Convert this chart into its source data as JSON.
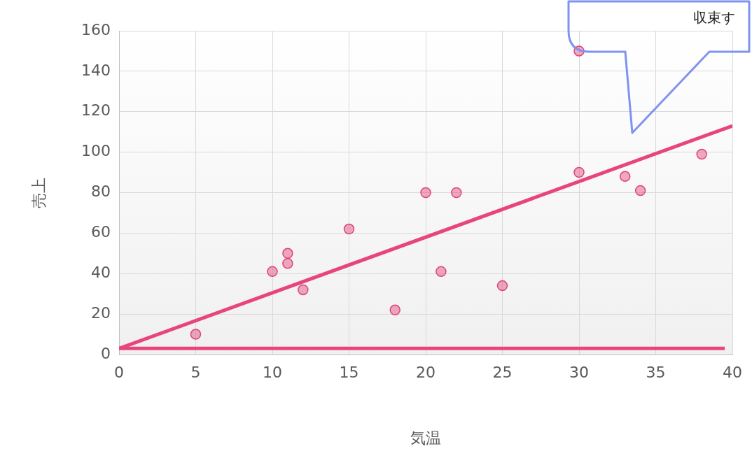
{
  "chart_data": {
    "type": "scatter",
    "xlabel": "気温",
    "ylabel": "売上",
    "xlim": [
      0,
      40
    ],
    "xticks": [
      0,
      5,
      10,
      15,
      20,
      25,
      30,
      35,
      40
    ],
    "ylim": [
      0,
      160
    ],
    "yticks": [
      0,
      20,
      40,
      60,
      80,
      100,
      120,
      140,
      160
    ],
    "grid": true,
    "legend": false,
    "marker": "circle",
    "series": [
      {
        "color": "#e0447a",
        "x": [
          5,
          10,
          11,
          11,
          12,
          15,
          18,
          20,
          21,
          22,
          25,
          30,
          30,
          33,
          34,
          38
        ],
        "values": [
          10,
          41,
          50,
          45,
          32,
          62,
          22,
          80,
          41,
          80,
          34,
          150,
          90,
          88,
          81,
          99
        ]
      },
      {
        "type": "line",
        "color": "#e8457a",
        "marker": "none",
        "x": [
          0,
          40
        ],
        "values": [
          3,
          113
        ]
      },
      {
        "type": "line",
        "color": "#e8457a",
        "marker": "none",
        "x": [
          0,
          39.5
        ],
        "values": [
          3,
          3
        ]
      }
    ],
    "annotations": [
      "収束す"
    ]
  }
}
